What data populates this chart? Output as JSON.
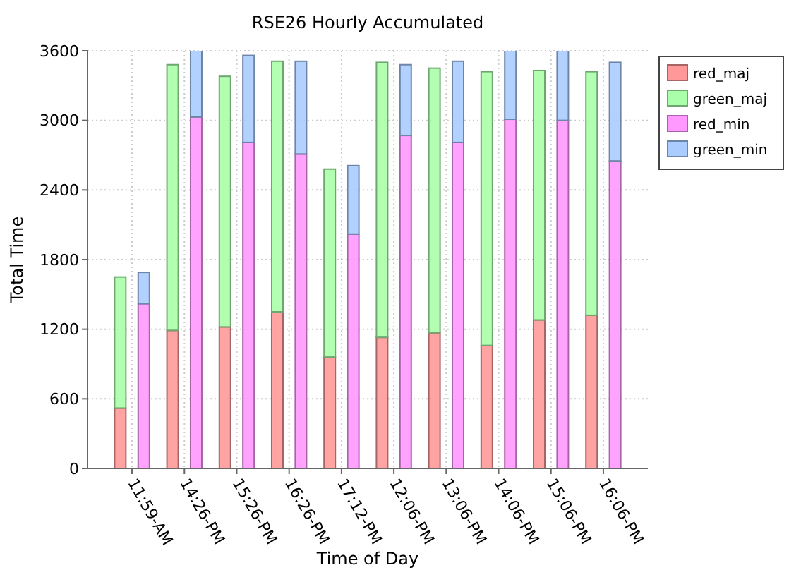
{
  "chart_data": {
    "type": "bar",
    "title": "RSE26 Hourly Accumulated",
    "xlabel": "Time of Day",
    "ylabel": "Total Time",
    "categories": [
      "11:59-AM",
      "14:26-PM",
      "15:26-PM",
      "16:26-PM",
      "17:12-PM",
      "12:06-PM",
      "13:06-PM",
      "14:06-PM",
      "15:06-PM",
      "16:06-PM"
    ],
    "series": [
      {
        "name": "red_maj",
        "color": "#ff9999",
        "values": [
          520,
          1190,
          1220,
          1350,
          960,
          1130,
          1170,
          1060,
          1280,
          1320
        ]
      },
      {
        "name": "green_maj",
        "color": "#aaffaa",
        "base": [
          520,
          1190,
          1220,
          1350,
          960,
          1130,
          1170,
          1060,
          1280,
          1320
        ],
        "values": [
          1130,
          2290,
          2160,
          2160,
          1620,
          2370,
          2280,
          2360,
          2150,
          2100
        ]
      },
      {
        "name": "red_min",
        "color": "#ff99ff",
        "values": [
          1420,
          3030,
          2810,
          2710,
          2020,
          2870,
          2810,
          3010,
          3000,
          2650
        ]
      },
      {
        "name": "green_min",
        "color": "#aaccff",
        "base": [
          1420,
          3030,
          2810,
          2710,
          2020,
          2870,
          2810,
          3010,
          3000,
          2650
        ],
        "values": [
          270,
          570,
          750,
          800,
          590,
          610,
          700,
          590,
          600,
          850
        ]
      }
    ],
    "ylim": [
      0,
      3600
    ],
    "yticks": [
      0,
      600,
      1200,
      1800,
      2400,
      3000,
      3600
    ],
    "grid": true,
    "legend": "top right"
  }
}
